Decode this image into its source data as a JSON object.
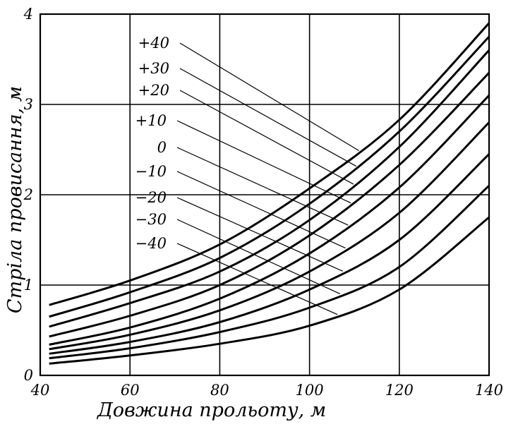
{
  "chart_data": {
    "type": "line",
    "xlabel": "Довжина прольоту, м",
    "ylabel": "Стріла провисання, м",
    "xlim": [
      40,
      140
    ],
    "ylim": [
      0,
      4
    ],
    "grid": true,
    "x_ticks": [
      "40",
      "60",
      "80",
      "100",
      "120",
      "140"
    ],
    "y_ticks": [
      "0",
      "1",
      "2",
      "3",
      "4"
    ],
    "x": [
      42,
      60,
      80,
      100,
      120,
      140
    ],
    "series": [
      {
        "name": "+40",
        "values": [
          0.78,
          1.05,
          1.45,
          2.07,
          2.83,
          3.9
        ]
      },
      {
        "name": "+30",
        "values": [
          0.65,
          0.92,
          1.3,
          1.9,
          2.7,
          3.75
        ]
      },
      {
        "name": "+20",
        "values": [
          0.54,
          0.8,
          1.15,
          1.72,
          2.53,
          3.6
        ]
      },
      {
        "name": "+10",
        "values": [
          0.43,
          0.66,
          1.0,
          1.55,
          2.33,
          3.35
        ]
      },
      {
        "name": "0",
        "values": [
          0.34,
          0.53,
          0.85,
          1.35,
          2.08,
          3.1
        ]
      },
      {
        "name": "-10",
        "values": [
          0.29,
          0.45,
          0.72,
          1.15,
          1.8,
          2.8
        ]
      },
      {
        "name": "-20",
        "values": [
          0.24,
          0.37,
          0.59,
          0.95,
          1.5,
          2.45
        ]
      },
      {
        "name": "-30",
        "values": [
          0.19,
          0.3,
          0.48,
          0.75,
          1.2,
          2.1
        ]
      },
      {
        "name": "-40",
        "values": [
          0.13,
          0.22,
          0.35,
          0.55,
          0.95,
          1.75
        ]
      }
    ],
    "legend_labels": [
      "+40",
      "+30",
      "+20",
      "+10",
      "0",
      "−10",
      "−20",
      "−30",
      "−40"
    ]
  }
}
